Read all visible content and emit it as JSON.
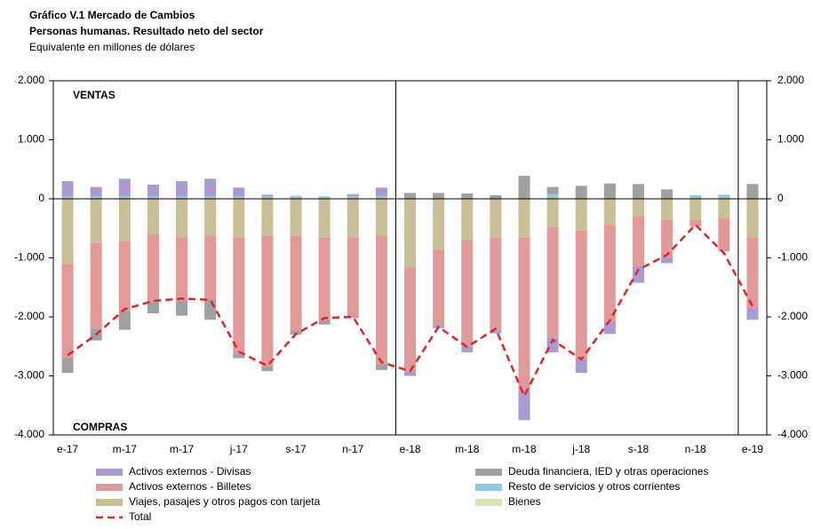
{
  "chart_data": {
    "type": "bar",
    "title": "Gráfico V.1 Mercado de Cambios",
    "subtitle": "Personas humanas. Resultado neto del sector",
    "unit_label": "Equivalente en millones de dólares",
    "annotations": [
      "VENTAS",
      "COMPRAS"
    ],
    "categories": [
      "e-17",
      null,
      "m-17",
      null,
      "m-17",
      null,
      "j-17",
      null,
      "s-17",
      null,
      "n-17",
      null,
      "e-18",
      null,
      "m-18",
      null,
      "m-18",
      null,
      "j-18",
      null,
      "s-18",
      null,
      "n-18",
      null,
      "e-19"
    ],
    "series": [
      {
        "name": "Activos externos - Divisas",
        "color": "#a99bd0",
        "values": [
          260,
          160,
          300,
          200,
          260,
          300,
          150,
          30,
          10,
          0,
          40,
          150,
          -80,
          -50,
          -100,
          -50,
          -500,
          -250,
          -230,
          -200,
          -280,
          -100,
          0,
          0,
          -200
        ]
      },
      {
        "name": "Deuda financiera, IED y otras operaciones",
        "color": "#a0a0a0",
        "values": [
          -250,
          -200,
          -320,
          -190,
          -250,
          -350,
          -80,
          -70,
          -60,
          -70,
          0,
          -100,
          100,
          100,
          90,
          60,
          390,
          120,
          220,
          260,
          250,
          160,
          0,
          0,
          250
        ]
      },
      {
        "name": "Activos externos - Billetes",
        "color": "#e09a9a",
        "values": [
          -1600,
          -1450,
          -1180,
          -1160,
          -1080,
          -1080,
          -1960,
          -2220,
          -1610,
          -1400,
          -1360,
          -2180,
          -1760,
          -1280,
          -1800,
          -1570,
          -2590,
          -1880,
          -2180,
          -1640,
          -840,
          -630,
          -120,
          -570,
          -1200
        ]
      },
      {
        "name": "Resto de servicios y otros corrientes",
        "color": "#8ccbdc",
        "values": [
          40,
          40,
          40,
          40,
          40,
          40,
          40,
          40,
          40,
          40,
          40,
          40,
          0,
          0,
          0,
          0,
          0,
          80,
          0,
          0,
          0,
          0,
          60,
          70,
          0
        ]
      },
      {
        "name": "Viajes, pasajes y otros pagos con tarjeta",
        "color": "#c8bf96",
        "values": [
          -1100,
          -750,
          -720,
          -590,
          -650,
          -620,
          -660,
          -630,
          -630,
          -660,
          -660,
          -620,
          -1160,
          -860,
          -700,
          -660,
          -660,
          -470,
          -540,
          -450,
          -300,
          -360,
          -350,
          -320,
          -650
        ]
      },
      {
        "name": "Bienes",
        "color": "#d4e6b5",
        "values": [
          0,
          0,
          0,
          0,
          0,
          0,
          0,
          0,
          0,
          0,
          0,
          0,
          0,
          0,
          0,
          0,
          0,
          0,
          0,
          0,
          0,
          0,
          0,
          0,
          0
        ]
      },
      {
        "name": "Total",
        "type": "line",
        "color": "#e8202a",
        "values": [
          -2650,
          -2300,
          -1870,
          -1730,
          -1690,
          -1710,
          -2590,
          -2830,
          -2290,
          -2020,
          -2000,
          -2770,
          -2920,
          -2170,
          -2510,
          -2200,
          -3340,
          -2390,
          -2720,
          -2060,
          -1200,
          -950,
          -440,
          -920,
          -1820
        ]
      }
    ],
    "ylim": [
      -4000,
      2000
    ],
    "yticks": [
      {
        "value": -4000,
        "label": "-4.000"
      },
      {
        "value": -3000,
        "label": "-3.000"
      },
      {
        "value": -2000,
        "label": "-2.000"
      },
      {
        "value": -1000,
        "label": "-1.000"
      },
      0,
      {
        "value": 1000,
        "label": "1.000"
      },
      {
        "value": 2000,
        "label": "2.000"
      }
    ],
    "y2lim": [
      -4000,
      2000
    ],
    "y2ticks": [
      {
        "value": -4000,
        "label": "-4.000"
      },
      {
        "value": -3000,
        "label": "-3.000"
      },
      {
        "value": -2000,
        "label": "-2.000"
      },
      {
        "value": -1000,
        "label": "-1.000"
      },
      0,
      {
        "value": 1000,
        "label": "1.000"
      },
      {
        "value": 2000,
        "label": "2.000"
      }
    ]
  }
}
